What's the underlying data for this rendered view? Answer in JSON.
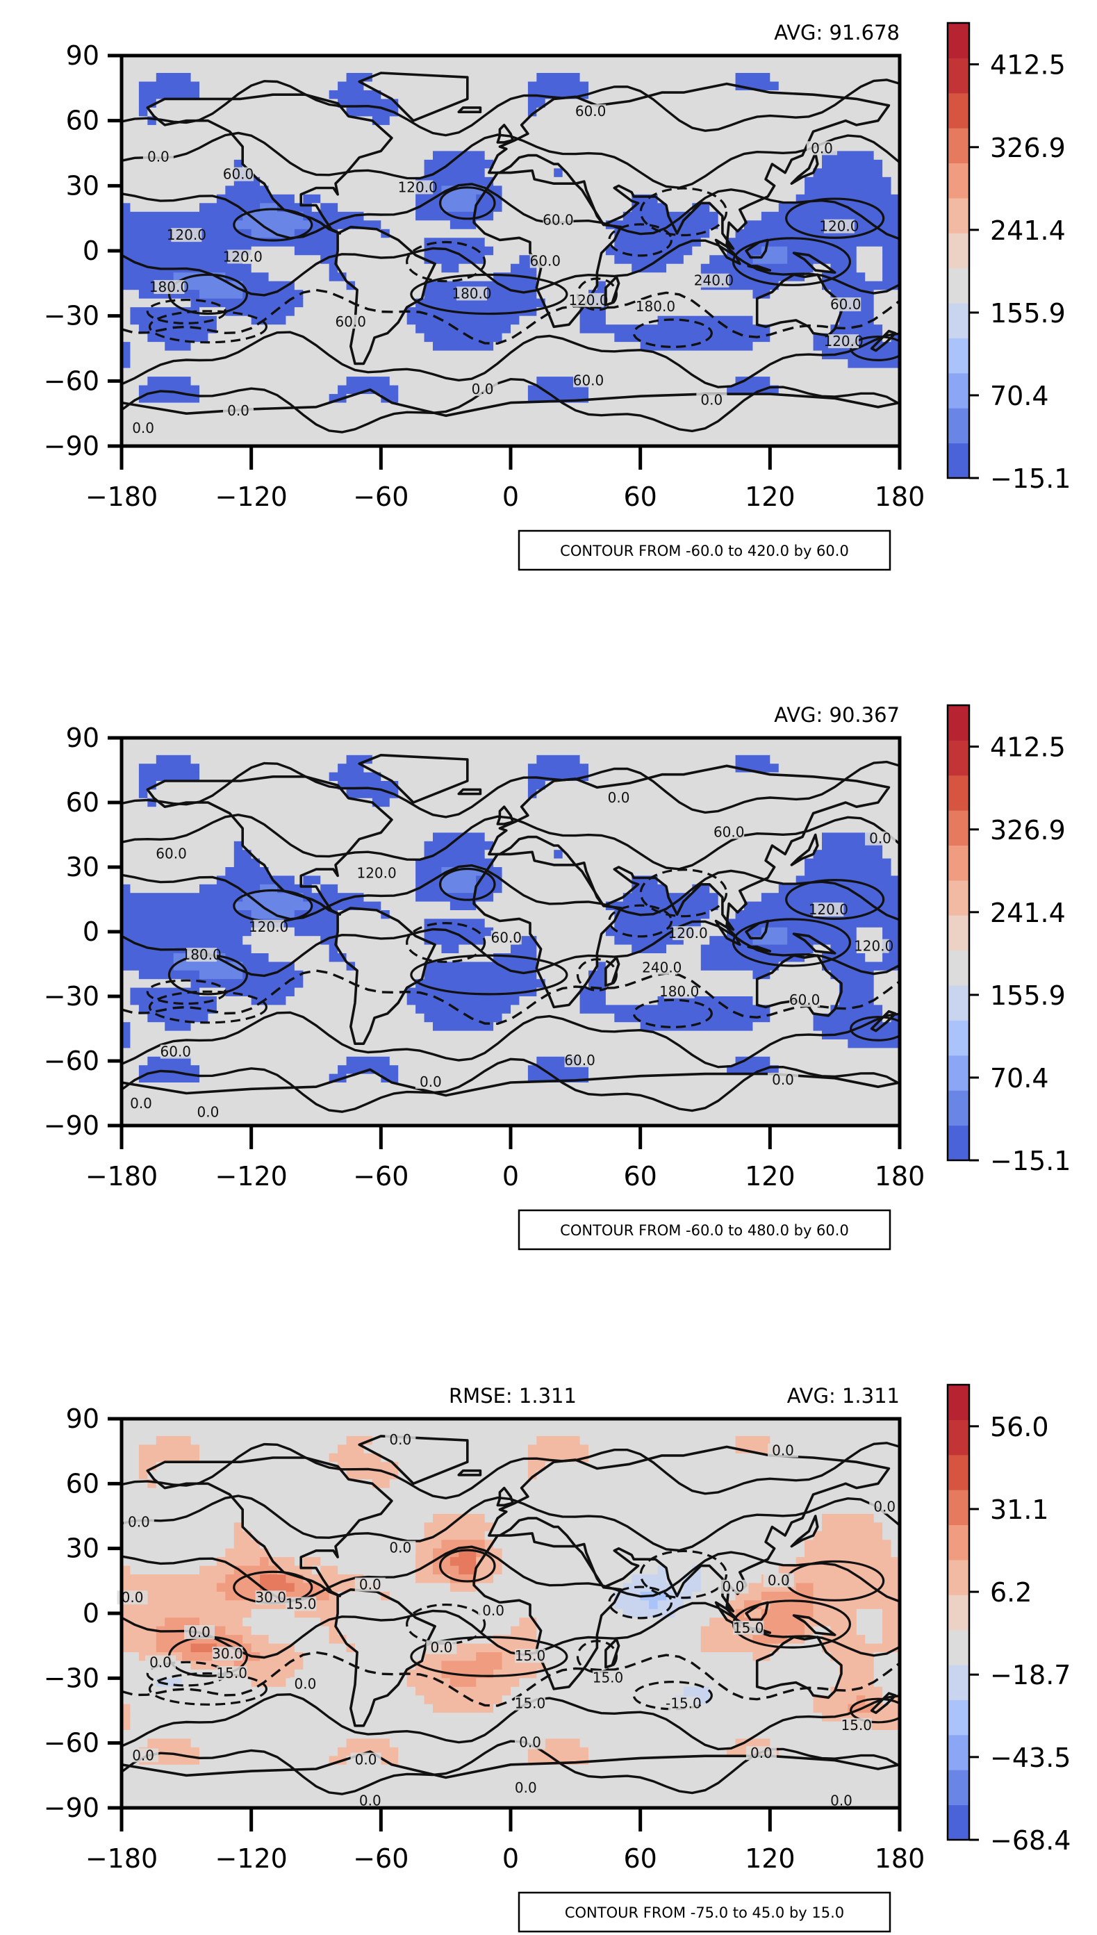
{
  "chart_data": [
    {
      "type": "heatmap",
      "panel": "top",
      "title_right": "AVG: 91.678",
      "title_center": "",
      "contour_note": "CONTOUR FROM -60.0 to 420.0 by 60.0",
      "xlim": [
        -180,
        180
      ],
      "ylim": [
        -90,
        90
      ],
      "xticks": [
        "−180",
        "−120",
        "−60",
        "0",
        "60",
        "120",
        "180"
      ],
      "yticks": [
        "90",
        "60",
        "30",
        "0",
        "−30",
        "−60",
        "−90"
      ],
      "colorbar": {
        "min": -15.1,
        "max": 455.3,
        "ticks": [
          "412.5",
          "326.9",
          "241.4",
          "155.9",
          "70.4",
          "−15.1"
        ]
      },
      "contour_labels": [
        {
          "text": "0.0",
          "lon": -163,
          "lat": 43
        },
        {
          "text": "60.0",
          "lon": -126,
          "lat": 35
        },
        {
          "text": "120.0",
          "lon": -43,
          "lat": 29
        },
        {
          "text": "120.0",
          "lon": -150,
          "lat": 7
        },
        {
          "text": "120.0",
          "lon": -124,
          "lat": -3
        },
        {
          "text": "180.0",
          "lon": -158,
          "lat": -17
        },
        {
          "text": "60.0",
          "lon": -74,
          "lat": -33
        },
        {
          "text": "60.0",
          "lon": 22,
          "lat": 14
        },
        {
          "text": "60.0",
          "lon": 16,
          "lat": -5
        },
        {
          "text": "180.0",
          "lon": -18,
          "lat": -20
        },
        {
          "text": "120.0",
          "lon": 36,
          "lat": -23
        },
        {
          "text": "180.0",
          "lon": 67,
          "lat": -26
        },
        {
          "text": "240.0",
          "lon": 94,
          "lat": -14
        },
        {
          "text": "60.0",
          "lon": 37,
          "lat": 64
        },
        {
          "text": "120.0",
          "lon": 152,
          "lat": 11
        },
        {
          "text": "60.0",
          "lon": 155,
          "lat": -25
        },
        {
          "text": "120.0",
          "lon": 154,
          "lat": -42
        },
        {
          "text": "60.0",
          "lon": 36,
          "lat": -60
        },
        {
          "text": "0.0",
          "lon": -13,
          "lat": -64
        },
        {
          "text": "0.0",
          "lon": 93,
          "lat": -69
        },
        {
          "text": "0.0",
          "lon": -126,
          "lat": -74
        },
        {
          "text": "0.0",
          "lon": -170,
          "lat": -82
        },
        {
          "text": "0.0",
          "lon": 144,
          "lat": 47
        }
      ]
    },
    {
      "type": "heatmap",
      "panel": "middle",
      "title_right": "AVG: 90.367",
      "title_center": "",
      "contour_note": "CONTOUR FROM -60.0 to 480.0 by 60.0",
      "xlim": [
        -180,
        180
      ],
      "ylim": [
        -90,
        90
      ],
      "xticks": [
        "−180",
        "−120",
        "−60",
        "0",
        "60",
        "120",
        "180"
      ],
      "yticks": [
        "90",
        "60",
        "30",
        "0",
        "−30",
        "−60",
        "−90"
      ],
      "colorbar": {
        "min": -15.1,
        "max": 455.3,
        "ticks": [
          "412.5",
          "326.9",
          "241.4",
          "155.9",
          "70.4",
          "−15.1"
        ]
      },
      "contour_labels": [
        {
          "text": "60.0",
          "lon": -157,
          "lat": 36
        },
        {
          "text": "120.0",
          "lon": -62,
          "lat": 27
        },
        {
          "text": "0.0",
          "lon": 50,
          "lat": 62
        },
        {
          "text": "60.0",
          "lon": 101,
          "lat": 46
        },
        {
          "text": "0.0",
          "lon": 171,
          "lat": 43
        },
        {
          "text": "120.0",
          "lon": -112,
          "lat": 2
        },
        {
          "text": "180.0",
          "lon": -143,
          "lat": -11
        },
        {
          "text": "120.0",
          "lon": 82,
          "lat": -1
        },
        {
          "text": "120.0",
          "lon": 147,
          "lat": 10
        },
        {
          "text": "120.0",
          "lon": 168,
          "lat": -7
        },
        {
          "text": "60.0",
          "lon": -2,
          "lat": -3
        },
        {
          "text": "240.0",
          "lon": 70,
          "lat": -17
        },
        {
          "text": "180.0",
          "lon": 78,
          "lat": -28
        },
        {
          "text": "60.0",
          "lon": 136,
          "lat": -32
        },
        {
          "text": "60.0",
          "lon": -155,
          "lat": -56
        },
        {
          "text": "60.0",
          "lon": 32,
          "lat": -60
        },
        {
          "text": "0.0",
          "lon": -37,
          "lat": -70
        },
        {
          "text": "0.0",
          "lon": 126,
          "lat": -69
        },
        {
          "text": "0.0",
          "lon": -171,
          "lat": -80
        },
        {
          "text": "0.0",
          "lon": -140,
          "lat": -84
        }
      ]
    },
    {
      "type": "heatmap",
      "panel": "bottom",
      "title_right": "AVG: 1.311",
      "title_center": "RMSE: 1.311",
      "contour_note": "CONTOUR FROM -75.0 to 45.0 by 15.0",
      "xlim": [
        -180,
        180
      ],
      "ylim": [
        -90,
        90
      ],
      "xticks": [
        "−180",
        "−120",
        "−60",
        "0",
        "60",
        "120",
        "180"
      ],
      "yticks": [
        "90",
        "60",
        "30",
        "0",
        "−30",
        "−60",
        "−90"
      ],
      "colorbar": {
        "min": -68.4,
        "max": 68.5,
        "ticks": [
          "56.0",
          "31.1",
          "6.2",
          "−18.7",
          "−43.5",
          "−68.4"
        ]
      },
      "contour_labels": [
        {
          "text": "0.0",
          "lon": -51,
          "lat": 80
        },
        {
          "text": "0.0",
          "lon": 126,
          "lat": 75
        },
        {
          "text": "0.0",
          "lon": 173,
          "lat": 49
        },
        {
          "text": "0.0",
          "lon": -172,
          "lat": 42
        },
        {
          "text": "0.0",
          "lon": -51,
          "lat": 30
        },
        {
          "text": "0.0",
          "lon": -175,
          "lat": 7
        },
        {
          "text": "30.0",
          "lon": -111,
          "lat": 7
        },
        {
          "text": "15.0",
          "lon": -97,
          "lat": 4
        },
        {
          "text": "0.0",
          "lon": -65,
          "lat": 13
        },
        {
          "text": "0.0",
          "lon": -144,
          "lat": -9
        },
        {
          "text": "30.0",
          "lon": -131,
          "lat": -19
        },
        {
          "text": "15.0",
          "lon": -129,
          "lat": -28
        },
        {
          "text": "0.0",
          "lon": -162,
          "lat": -23
        },
        {
          "text": "0.0",
          "lon": -95,
          "lat": -33
        },
        {
          "text": "0.0",
          "lon": -32,
          "lat": -16
        },
        {
          "text": "0.0",
          "lon": -8,
          "lat": 1
        },
        {
          "text": "15.0",
          "lon": 9,
          "lat": -20
        },
        {
          "text": "15.0",
          "lon": 45,
          "lat": -30
        },
        {
          "text": "15.0",
          "lon": 9,
          "lat": -42
        },
        {
          "text": "-15.0",
          "lon": 80,
          "lat": -42
        },
        {
          "text": "0.0",
          "lon": 103,
          "lat": 12
        },
        {
          "text": "0.0",
          "lon": 124,
          "lat": 15
        },
        {
          "text": "15.0",
          "lon": 110,
          "lat": -7
        },
        {
          "text": "15.0",
          "lon": 160,
          "lat": -52
        },
        {
          "text": "0.0",
          "lon": 9,
          "lat": -60
        },
        {
          "text": "0.0",
          "lon": -170,
          "lat": -66
        },
        {
          "text": "0.0",
          "lon": 116,
          "lat": -65
        },
        {
          "text": "0.0",
          "lon": -67,
          "lat": -68
        },
        {
          "text": "0.0",
          "lon": 7,
          "lat": -81
        },
        {
          "text": "0.0",
          "lon": -65,
          "lat": -87
        },
        {
          "text": "0.0",
          "lon": 153,
          "lat": -87
        }
      ]
    }
  ]
}
